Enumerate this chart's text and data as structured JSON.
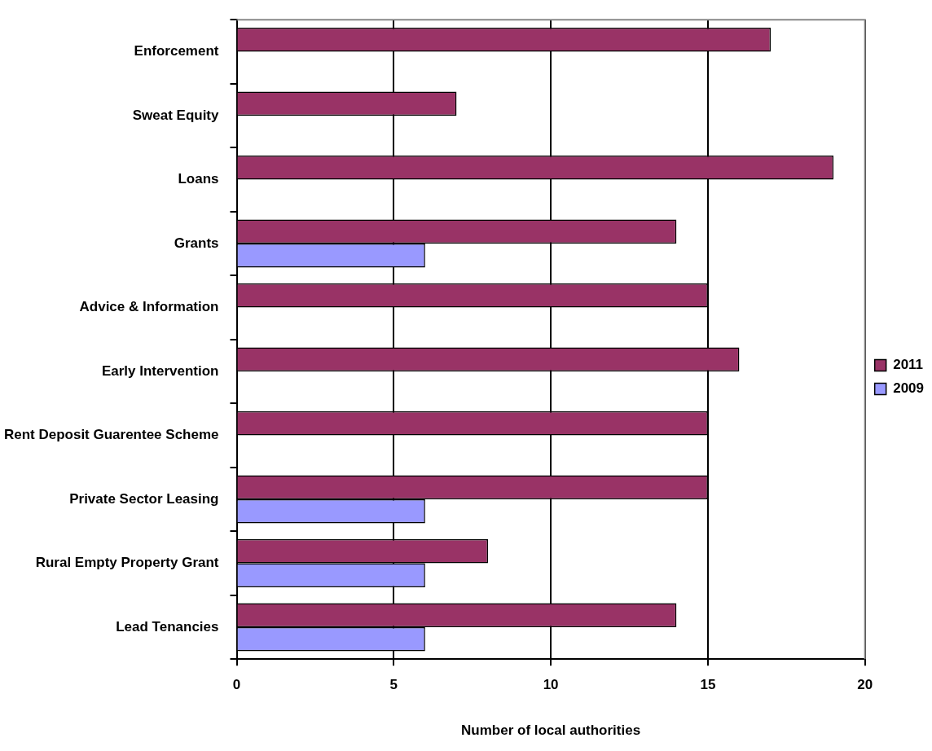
{
  "chart_data": {
    "type": "bar",
    "orientation": "horizontal",
    "xlabel": "Number of local authorities",
    "categories": [
      "Enforcement",
      "Sweat Equity",
      "Loans",
      "Grants",
      "Advice & Information",
      "Early Intervention",
      "Rent Deposit Guarentee Scheme",
      "Private Sector Leasing",
      "Rural Empty Property Grant",
      "Lead Tenancies"
    ],
    "series": [
      {
        "name": "2011",
        "color": "#993366",
        "values": [
          17,
          7,
          19,
          14,
          15,
          16,
          15,
          15,
          8,
          14
        ]
      },
      {
        "name": "2009",
        "color": "#9999ff",
        "values": [
          null,
          null,
          null,
          6,
          null,
          null,
          null,
          6,
          6,
          6
        ]
      }
    ],
    "xlim": [
      0,
      20
    ],
    "xticks": [
      0,
      5,
      10,
      15,
      20
    ],
    "grid": "x",
    "legend": "right"
  }
}
